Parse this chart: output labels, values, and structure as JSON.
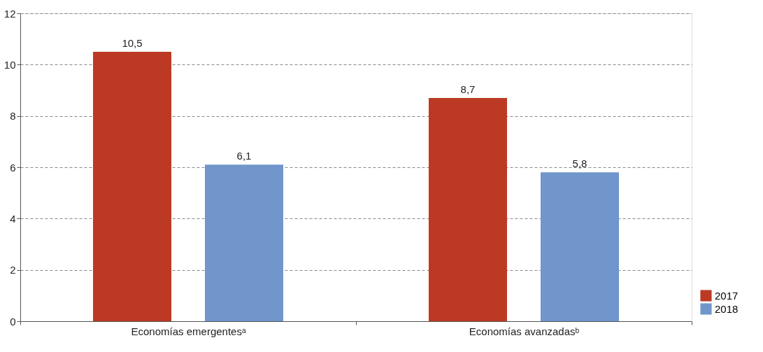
{
  "chart_data": {
    "type": "bar",
    "categories": [
      "Economías emergentesᵃ",
      "Economías avanzadasᵇ"
    ],
    "series": [
      {
        "name": "2017",
        "color": "#bc3a24",
        "values": [
          10.5,
          8.7
        ],
        "value_labels": [
          "10,5",
          "8,7"
        ]
      },
      {
        "name": "2018",
        "color": "#7096cb",
        "values": [
          6.1,
          5.8
        ],
        "value_labels": [
          "6,1",
          "5,8"
        ]
      }
    ],
    "ylim": [
      0,
      12
    ],
    "yticks": [
      0,
      2,
      4,
      6,
      8,
      10,
      12
    ],
    "grid": "y",
    "legend": "bottom right"
  }
}
